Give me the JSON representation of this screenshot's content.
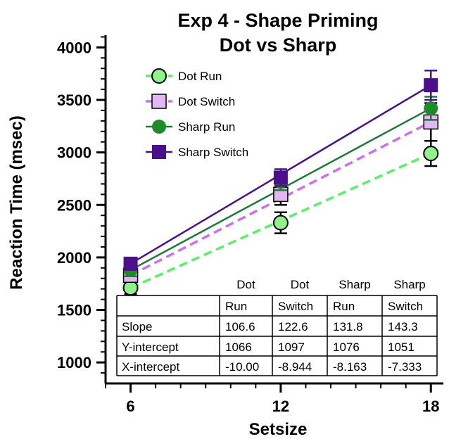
{
  "chart_data": {
    "type": "line",
    "title_line1": "Exp 4 - Shape Priming",
    "title_line2": "Dot vs Sharp",
    "xlabel": "Setsize",
    "ylabel": "Reaction Time (msec)",
    "x": [
      6,
      12,
      18
    ],
    "xlim": [
      5,
      18.5
    ],
    "ylim": [
      800,
      4150
    ],
    "xticks": [
      "6",
      "12",
      "18"
    ],
    "yticks": [
      "1000",
      "1500",
      "2000",
      "2500",
      "3000",
      "3500",
      "4000"
    ],
    "grid": false,
    "legend_position": "top-left",
    "series": [
      {
        "name": "Dot Run",
        "values": [
          1710,
          2330,
          2990
        ],
        "errors": [
          60,
          100,
          120
        ],
        "color": "#5cf06a",
        "marker": "circle",
        "fill": "#8ff28b",
        "dashed": true
      },
      {
        "name": "Dot Switch",
        "values": [
          1830,
          2600,
          3290
        ],
        "errors": [
          60,
          100,
          180
        ],
        "color": "#cc6ff0",
        "marker": "square",
        "fill": "#e2b8f3",
        "dashed": true
      },
      {
        "name": "Sharp Run",
        "values": [
          1880,
          2720,
          3420
        ],
        "errors": [
          60,
          80,
          110
        ],
        "color": "#1f7a3a",
        "marker": "circle",
        "fill": "#1f8a2a",
        "dashed": false
      },
      {
        "name": "Sharp Switch",
        "values": [
          1940,
          2760,
          3640
        ],
        "errors": [
          40,
          80,
          140
        ],
        "color": "#4b0f8c",
        "marker": "square",
        "fill": "#4b0f8c",
        "dashed": false
      }
    ],
    "table": {
      "col_headers_top": [
        "Dot",
        "Dot",
        "Sharp",
        "Sharp"
      ],
      "col_headers_bottom": [
        "Run",
        "Switch",
        "Run",
        "Switch"
      ],
      "rows": [
        {
          "label": "Slope",
          "cells": [
            "106.6",
            "122.6",
            "131.8",
            "143.3"
          ]
        },
        {
          "label": "Y-intercept",
          "cells": [
            "1066",
            "1097",
            "1076",
            "1051"
          ]
        },
        {
          "label": "X-intercept",
          "cells": [
            "-10.00",
            "-8.944",
            "-8.163",
            "-7.333"
          ]
        }
      ]
    }
  }
}
